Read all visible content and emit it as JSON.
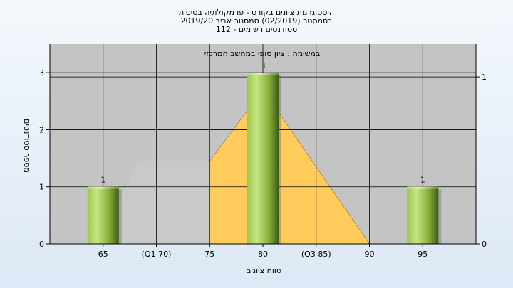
{
  "header": {
    "title_lines": [
      "היסטוגרמת ציונים בקורס - פרמקולוגיה בסיסית",
      "בסמסטר  (02/2019)  סמסטר אביב 2019/20",
      "סטודנטים רשומים - 112"
    ]
  },
  "chart_data": {
    "type": "bar",
    "inner_title": "במשימה : ציון סופי במחשב המרכזי",
    "xlabel": "טווח ציונים",
    "ylabel": "מספר סטודנטים",
    "x_ticks": [
      {
        "value": 65,
        "label": "65"
      },
      {
        "value": 70,
        "label": "(Q1 70)"
      },
      {
        "value": 75,
        "label": "75"
      },
      {
        "value": 80,
        "label": "80"
      },
      {
        "value": 85,
        "label": "(Q3 85)"
      },
      {
        "value": 90,
        "label": "90"
      },
      {
        "value": 95,
        "label": "95"
      }
    ],
    "xlim": [
      60,
      100
    ],
    "ylim": [
      0,
      3.5
    ],
    "y_ticks": [
      0,
      1,
      2,
      3
    ],
    "y2_ticks": [
      0,
      1
    ],
    "bars": [
      {
        "x": 65,
        "value": 1,
        "label": "1"
      },
      {
        "x": 80,
        "value": 3,
        "label": "3"
      },
      {
        "x": 95,
        "value": 1,
        "label": "1"
      }
    ],
    "distribution": [
      {
        "x": 66.1,
        "y": 0.55
      },
      {
        "x": 68.2,
        "y": 1.45
      },
      {
        "x": 75,
        "y": 1.45
      },
      {
        "x": 80,
        "y": 2.7
      },
      {
        "x": 90,
        "y": 0
      }
    ],
    "quartile_band": [
      70,
      85
    ],
    "grid": true,
    "colors": {
      "plot_bg": "#c4c4c4",
      "bar_light": "#b4d86a",
      "bar_dark": "#3d5c14",
      "orange_area": "#ffcc5c",
      "gray_area": "#c9c9c9"
    }
  }
}
